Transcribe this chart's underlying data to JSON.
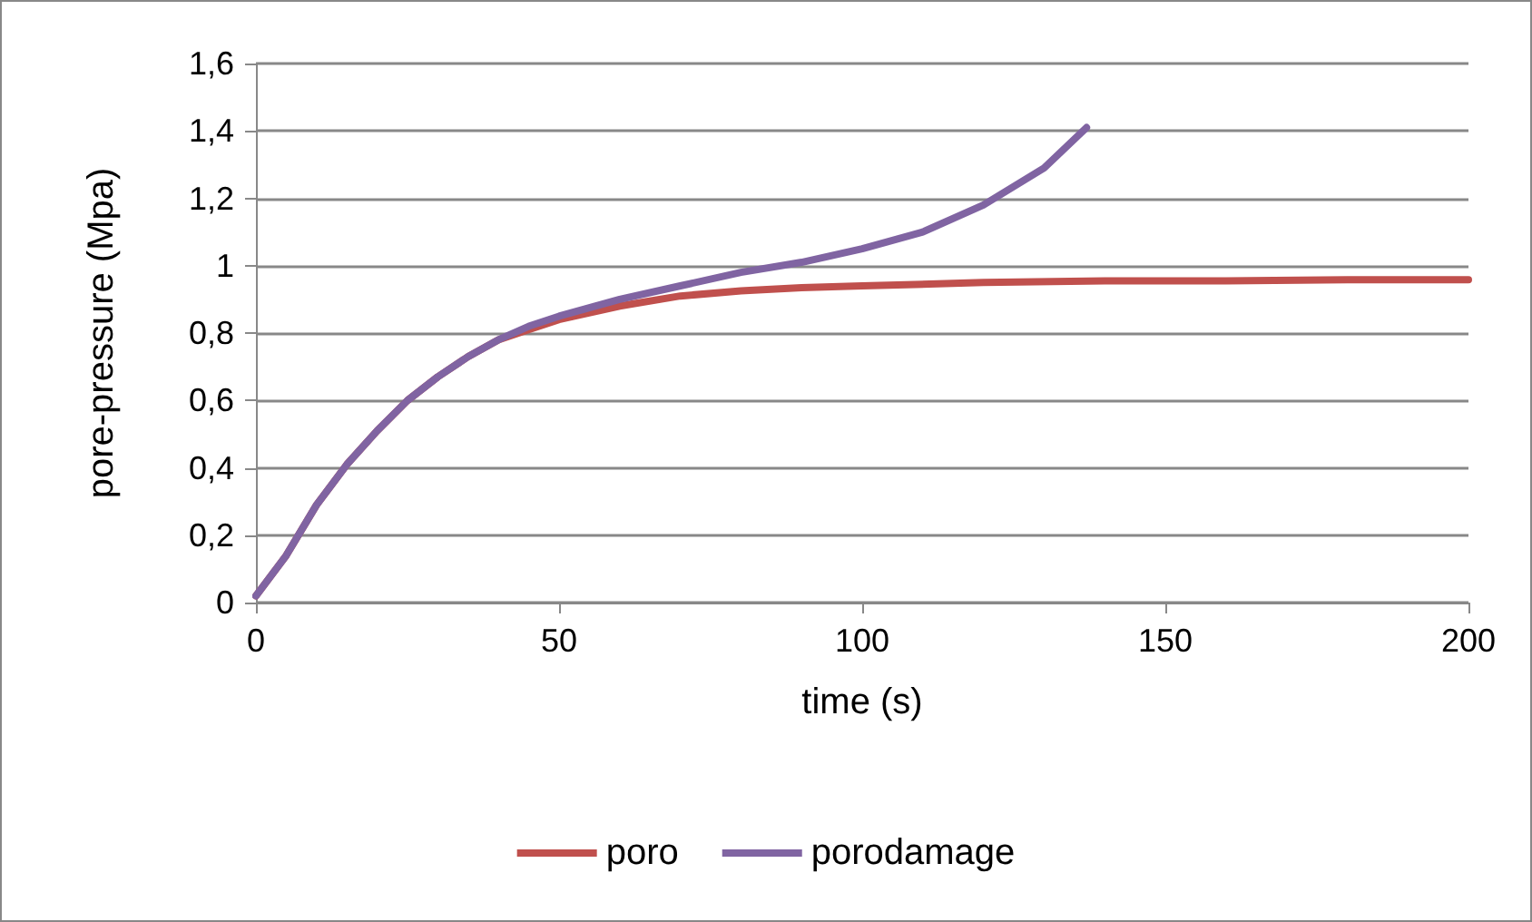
{
  "chart_data": {
    "type": "line",
    "xlabel": "time (s)",
    "ylabel": "pore-pressure (Mpa)",
    "xlim": [
      0,
      200
    ],
    "xticks": [
      0,
      50,
      100,
      150,
      200
    ],
    "ylim": [
      0,
      1.6
    ],
    "yticks": [
      {
        "value": 0,
        "label": "0"
      },
      {
        "value": 0.2,
        "label": "0,2"
      },
      {
        "value": 0.4,
        "label": "0,4"
      },
      {
        "value": 0.6,
        "label": "0,6"
      },
      {
        "value": 0.8,
        "label": "0,8"
      },
      {
        "value": 1,
        "label": "1"
      },
      {
        "value": 1.2,
        "label": "1,2"
      },
      {
        "value": 1.4,
        "label": "1,4"
      },
      {
        "value": 1.6,
        "label": "1,6"
      }
    ],
    "grid": "y",
    "legend": "bottom",
    "marker": "none",
    "line_style": "solid",
    "series": [
      {
        "name": "poro",
        "color": "#c0504d",
        "x": [
          0,
          5,
          10,
          15,
          20,
          25,
          30,
          35,
          40,
          45,
          50,
          60,
          70,
          80,
          90,
          100,
          120,
          140,
          160,
          180,
          200
        ],
        "values": [
          0.02,
          0.14,
          0.29,
          0.41,
          0.51,
          0.6,
          0.67,
          0.73,
          0.78,
          0.81,
          0.84,
          0.88,
          0.91,
          0.925,
          0.935,
          0.94,
          0.95,
          0.955,
          0.955,
          0.958,
          0.958
        ]
      },
      {
        "name": "porodamage",
        "color": "#8064a2",
        "x": [
          0,
          5,
          10,
          15,
          20,
          25,
          30,
          35,
          40,
          45,
          50,
          60,
          70,
          80,
          90,
          100,
          110,
          120,
          130,
          137
        ],
        "values": [
          0.02,
          0.14,
          0.29,
          0.41,
          0.51,
          0.6,
          0.67,
          0.73,
          0.78,
          0.82,
          0.85,
          0.9,
          0.94,
          0.98,
          1.01,
          1.05,
          1.1,
          1.18,
          1.29,
          1.41
        ]
      }
    ]
  }
}
